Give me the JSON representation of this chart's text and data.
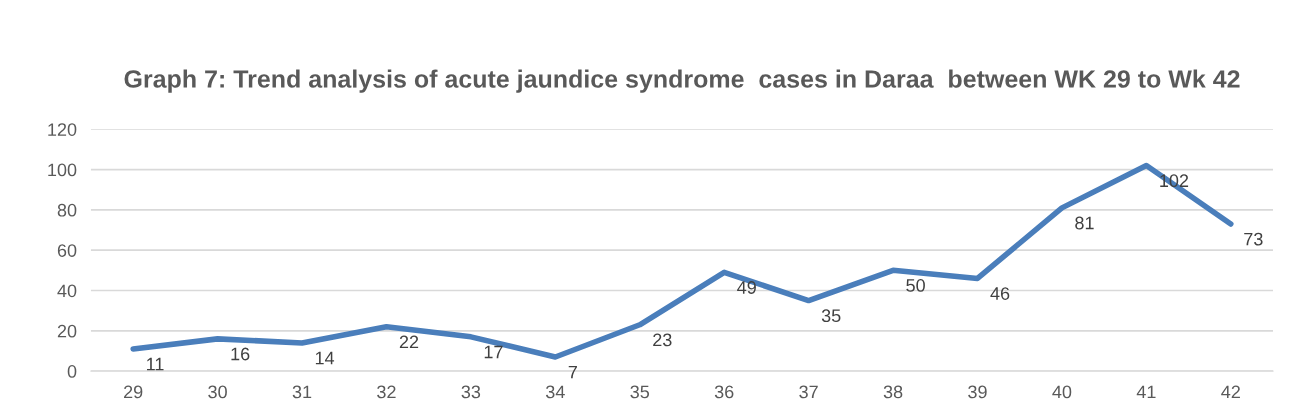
{
  "chart_data": {
    "type": "line",
    "title": "Graph 7: Trend analysis of acute jaundice syndrome  cases in Daraa  between WK 29 to Wk 42",
    "categories": [
      "29",
      "30",
      "31",
      "32",
      "33",
      "34",
      "35",
      "36",
      "37",
      "38",
      "39",
      "40",
      "41",
      "42"
    ],
    "series": [
      {
        "color": "#4a7ebb",
        "values": [
          11,
          16,
          14,
          22,
          17,
          7,
          23,
          49,
          35,
          50,
          46,
          81,
          102,
          73
        ]
      }
    ],
    "ylim": [
      0,
      120
    ],
    "yticks": [
      0,
      20,
      40,
      60,
      80,
      100,
      120
    ],
    "grid": "y",
    "data_labels": true,
    "marker": "none",
    "line_style": "solid"
  }
}
